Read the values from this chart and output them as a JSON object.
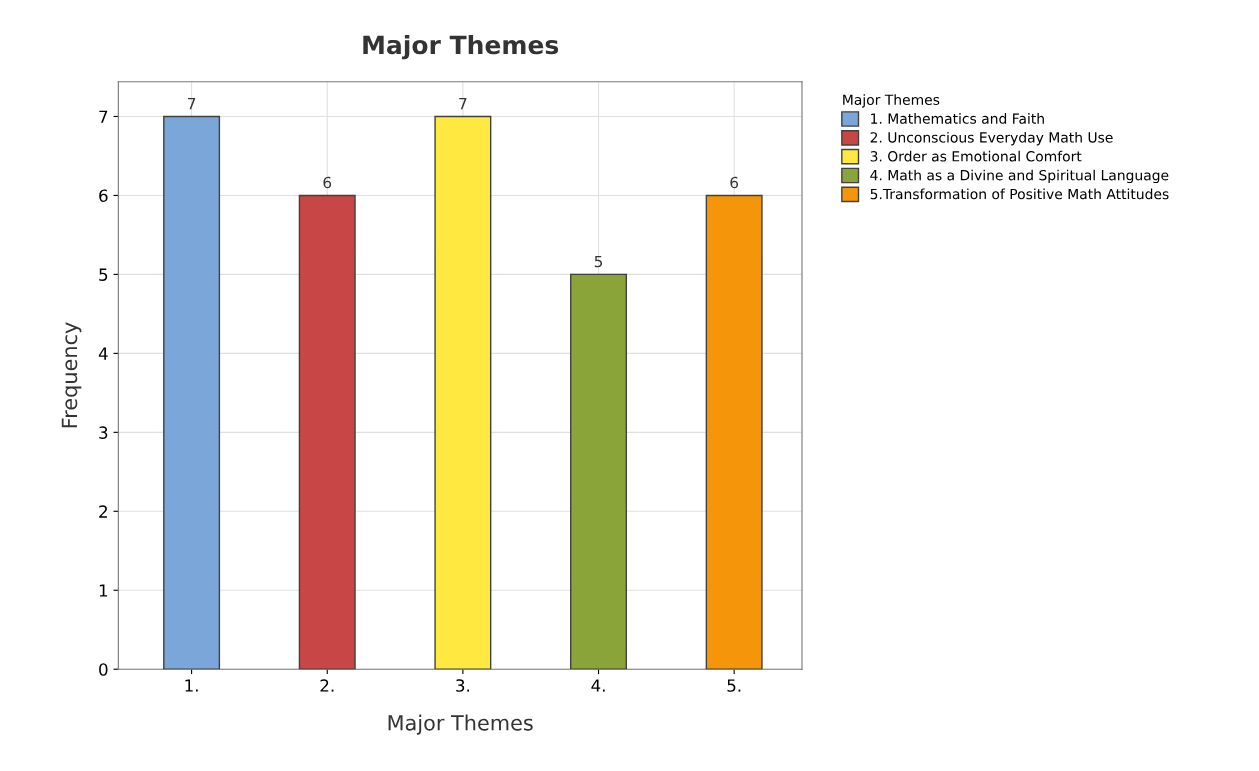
{
  "chart_data": {
    "type": "bar",
    "title": "Major Themes",
    "xlabel": "Major Themes",
    "ylabel": "Frequency",
    "legend_title": "Major Themes",
    "categories": [
      "1.",
      "2.",
      "3.",
      "4.",
      "5."
    ],
    "series": [
      {
        "name": "1. Mathematics and Faith",
        "color": "#7aa6da",
        "values": [
          7,
          null,
          null,
          null,
          null
        ]
      },
      {
        "name": "2. Unconscious Everyday Math Use",
        "color": "#c84645",
        "values": [
          null,
          6,
          null,
          null,
          null
        ]
      },
      {
        "name": "3. Order as Emotional Comfort",
        "color": "#ffe83f",
        "values": [
          null,
          null,
          7,
          null,
          null
        ]
      },
      {
        "name": "4. Math as a Divine and Spiritual Language",
        "color": "#8ba43a",
        "values": [
          null,
          null,
          null,
          5,
          null
        ]
      },
      {
        "name": "5.Transformation of Positive Math Attitudes",
        "color": "#f5960a",
        "values": [
          null,
          null,
          null,
          null,
          6
        ]
      }
    ],
    "ylim": [
      0,
      7.44
    ],
    "yticks": [
      0,
      1,
      2,
      3,
      4,
      5,
      6,
      7
    ],
    "grid": true,
    "legend": "right",
    "data_labels": true
  }
}
